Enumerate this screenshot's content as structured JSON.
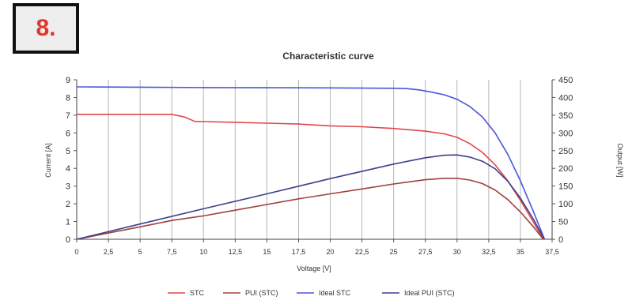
{
  "badge": {
    "label": "8."
  },
  "chart_data": {
    "type": "line",
    "title": "Characteristic curve",
    "xlabel": "Voltage [V]",
    "ylabel_left": "Current [A]",
    "ylabel_right": "Output [W]",
    "xlim": [
      0,
      37.5
    ],
    "ylim_left": [
      0,
      9
    ],
    "ylim_right": [
      0,
      450
    ],
    "x_ticks": [
      "0",
      "2,5",
      "5",
      "7,5",
      "10",
      "12,5",
      "15",
      "17,5",
      "20",
      "22,5",
      "25",
      "27,5",
      "30",
      "32,5",
      "35",
      "37,5"
    ],
    "y_left_ticks": [
      "0",
      "1",
      "2",
      "3",
      "4",
      "5",
      "6",
      "7",
      "8",
      "9"
    ],
    "y_right_ticks": [
      "0",
      "50",
      "100",
      "150",
      "200",
      "250",
      "300",
      "350",
      "400",
      "450"
    ],
    "grid": "vertical",
    "legend_position": "bottom",
    "series": [
      {
        "name": "STC",
        "axis": "left",
        "color": "#e0474c",
        "x": [
          0,
          5,
          7.5,
          8.5,
          9.3,
          12.5,
          15,
          17.5,
          20,
          22.5,
          25,
          27.5,
          29,
          30,
          31,
          32,
          33,
          34,
          35,
          36,
          36.8
        ],
        "y": [
          7.05,
          7.05,
          7.05,
          6.9,
          6.65,
          6.6,
          6.55,
          6.5,
          6.4,
          6.35,
          6.25,
          6.1,
          5.95,
          5.75,
          5.4,
          4.9,
          4.2,
          3.3,
          2.2,
          1.0,
          0
        ]
      },
      {
        "name": "PUI (STC)",
        "axis": "right",
        "color": "#a0403c",
        "x": [
          0,
          5,
          7.5,
          10,
          12.5,
          15,
          17.5,
          20,
          22.5,
          25,
          27.5,
          29,
          30,
          31,
          32,
          33,
          34,
          35,
          36,
          36.8
        ],
        "y": [
          0,
          35,
          53,
          66,
          82,
          98,
          114,
          128,
          142,
          156,
          168,
          172,
          172,
          167,
          157,
          139,
          112,
          77,
          36,
          0
        ]
      },
      {
        "name": "Ideal STC",
        "axis": "left",
        "color": "#4a55d8",
        "x": [
          0,
          5,
          10,
          15,
          20,
          25,
          26,
          27,
          28,
          29,
          30,
          31,
          32,
          33,
          34,
          35,
          36,
          36.9
        ],
        "y": [
          8.6,
          8.58,
          8.56,
          8.55,
          8.54,
          8.52,
          8.5,
          8.43,
          8.3,
          8.15,
          7.9,
          7.5,
          6.9,
          6.0,
          4.8,
          3.3,
          1.6,
          0
        ]
      },
      {
        "name": "Ideal PUI (STC)",
        "axis": "right",
        "color": "#3d3f8f",
        "x": [
          0,
          5,
          10,
          15,
          20,
          25,
          27.5,
          29,
          30,
          31,
          32,
          33,
          34,
          35,
          36,
          36.9
        ],
        "y": [
          0,
          43,
          86,
          128,
          171,
          212,
          230,
          237,
          238,
          232,
          220,
          199,
          164,
          116,
          58,
          0
        ]
      }
    ]
  }
}
